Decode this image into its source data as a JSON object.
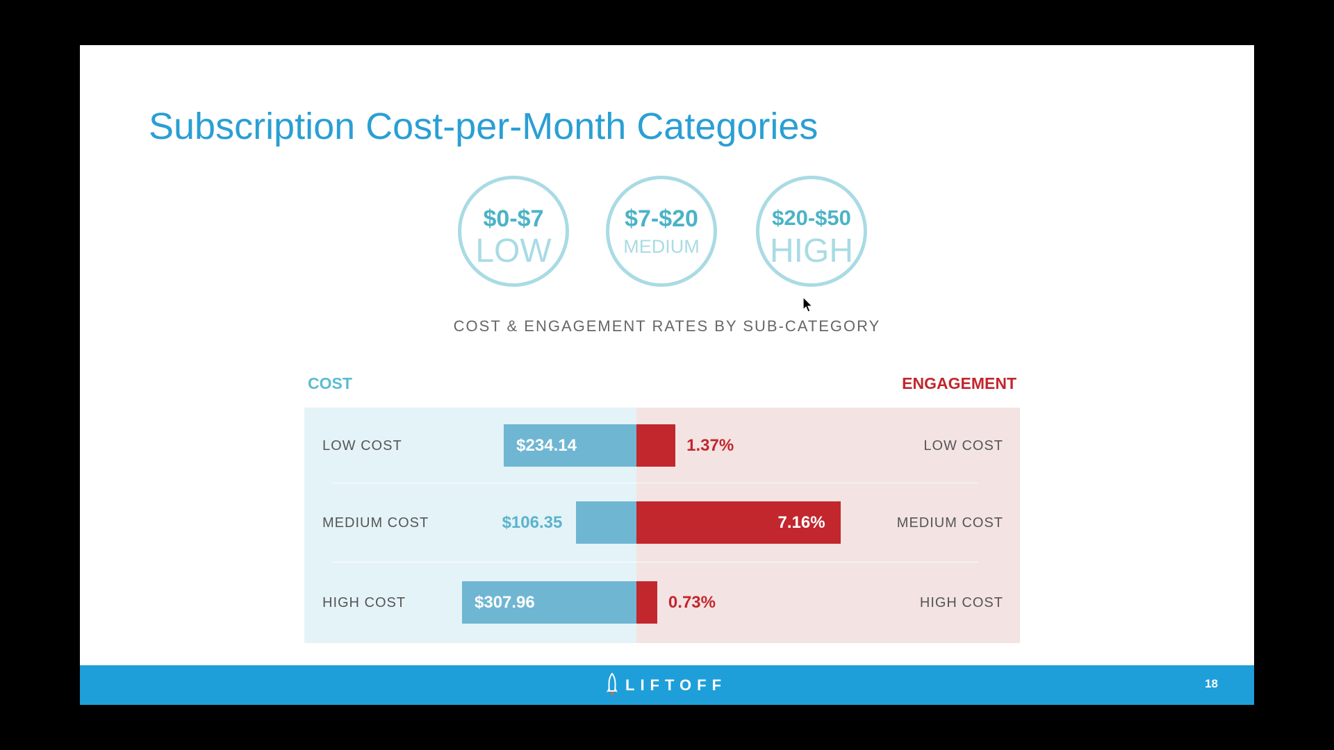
{
  "title": "Subscription Cost-per-Month Categories",
  "tiers": [
    {
      "range": "$0-$7",
      "level": "LOW"
    },
    {
      "range": "$7-$20",
      "level": "MEDIUM"
    },
    {
      "range": "$20-$50",
      "level": "HIGH"
    }
  ],
  "chart_data": {
    "type": "bar",
    "title": "COST & ENGAGEMENT RATES BY SUB-CATEGORY",
    "left_header": "COST",
    "right_header": "ENGAGEMENT",
    "categories": [
      "LOW COST",
      "MEDIUM COST",
      "HIGH COST"
    ],
    "series": [
      {
        "name": "COST",
        "values": [
          234.14,
          106.35,
          307.96
        ],
        "labels": [
          "$234.14",
          "$106.35",
          "$307.96"
        ],
        "color": "#6fb6d3"
      },
      {
        "name": "ENGAGEMENT",
        "values": [
          1.37,
          7.16,
          0.73
        ],
        "labels": [
          "1.37%",
          "7.16%",
          "0.73%"
        ],
        "color": "#c1272d"
      }
    ]
  },
  "footer": {
    "brand": "LIFTOFF",
    "page_number": "18",
    "color": "#1f9fd9"
  },
  "colors": {
    "title": "#2a9fd4",
    "cost": "#6fb6d3",
    "engagement": "#c1272d"
  }
}
